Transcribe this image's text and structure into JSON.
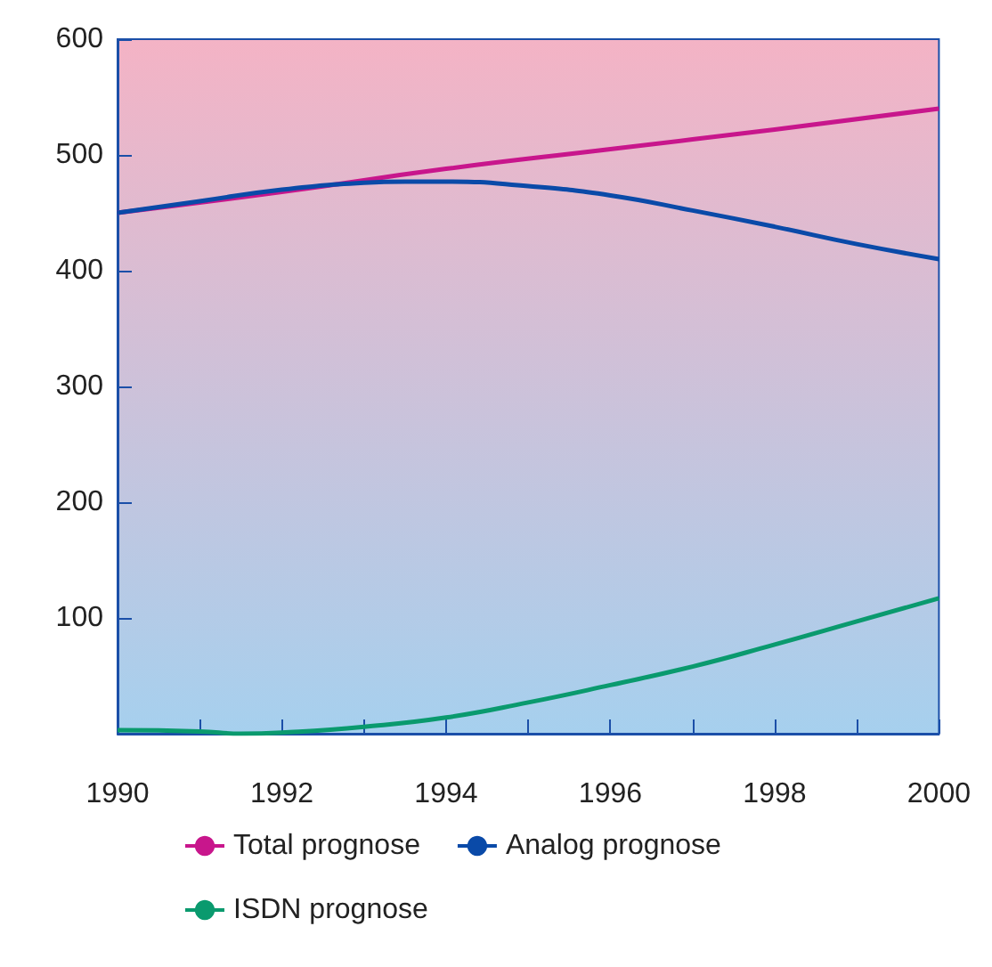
{
  "chart_data": {
    "type": "line",
    "xlim": [
      1990,
      2000
    ],
    "xticks": [
      1990,
      {
        "value": 1991,
        "label": null
      },
      1992,
      {
        "value": 1993,
        "label": null
      },
      1994,
      {
        "value": 1995,
        "label": null
      },
      1996,
      {
        "value": 1997,
        "label": null
      },
      1998,
      {
        "value": 1999,
        "label": null
      },
      2000
    ],
    "ylim": [
      0,
      600
    ],
    "yticks": [
      100,
      200,
      300,
      400,
      500,
      600
    ],
    "grid": false,
    "legend": "bottom",
    "marker": "none",
    "line_style": "solid",
    "series": [
      {
        "name": "Total prognose",
        "color": "#c8168c",
        "x": [
          1990,
          1992,
          1994,
          1996,
          1998,
          2000
        ],
        "values": [
          450,
          468,
          488,
          505,
          522,
          540
        ]
      },
      {
        "name": "Analog prognose",
        "color": "#0a4aa8",
        "x": [
          1990,
          1991,
          1992,
          1993,
          1993.5,
          1994,
          1995,
          1996,
          1997,
          1998,
          1999,
          2000
        ],
        "values": [
          450,
          460,
          470,
          476,
          477,
          477,
          473,
          465,
          452,
          438,
          423,
          410
        ]
      },
      {
        "name": "ISDN prognose",
        "color": "#0a9a6e",
        "x": [
          1990,
          1991,
          1991.5,
          1992,
          1993,
          1994,
          1995,
          1996,
          1997,
          1998,
          1999,
          2000
        ],
        "values": [
          3,
          2,
          0,
          1,
          6,
          14,
          27,
          42,
          58,
          77,
          97,
          117
        ]
      }
    ]
  }
}
